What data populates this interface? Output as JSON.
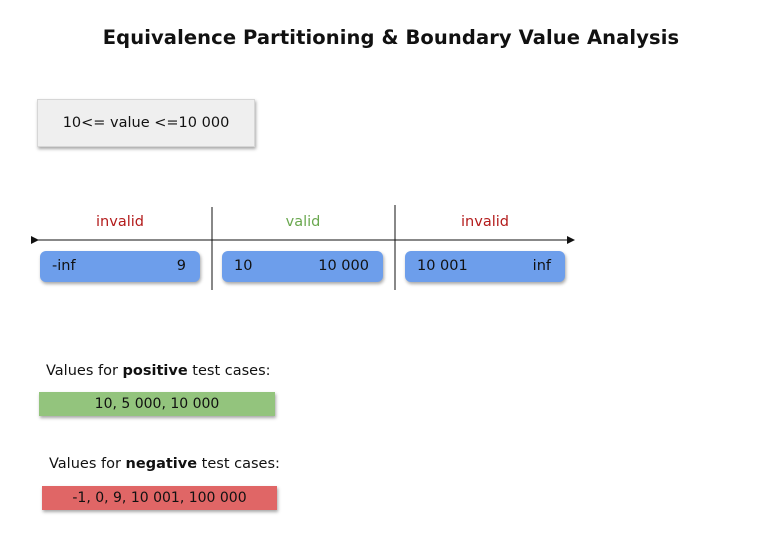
{
  "title": "Equivalence Partitioning & Boundary Value Analysis",
  "condition": "10<= value <=10 000",
  "partitions": [
    {
      "label": "invalid",
      "low": "-inf",
      "high": "9"
    },
    {
      "label": "valid",
      "low": "10",
      "high": "10 000"
    },
    {
      "label": "invalid",
      "low": "10 001",
      "high": "inf"
    }
  ],
  "positive": {
    "prefix": "Values for ",
    "keyword": "positive",
    "suffix": " test cases:",
    "values": "10, 5 000, 10 000"
  },
  "negative": {
    "prefix": "Values for ",
    "keyword": "negative",
    "suffix": " test cases:",
    "values": "-1, 0, 9, 10 001, 100 000"
  },
  "colors": {
    "invalid": "#b31b1b",
    "valid": "#6aa84f",
    "range_box": "#6d9eeb",
    "positive_box": "#93c47d",
    "negative_box": "#e06666",
    "condition_box": "#efefef"
  }
}
